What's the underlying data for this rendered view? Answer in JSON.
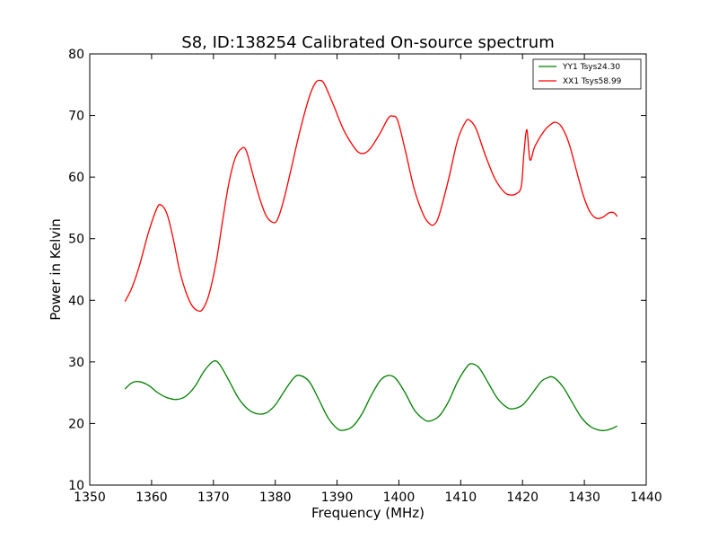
{
  "chart_data": {
    "type": "line",
    "title": "S8, ID:138254 Calibrated On-source spectrum",
    "xlabel": "Frequency (MHz)",
    "ylabel": "Power in Kelvin",
    "xlim": [
      1350,
      1440
    ],
    "ylim": [
      10,
      80
    ],
    "xticks": [
      1350,
      1360,
      1370,
      1380,
      1390,
      1400,
      1410,
      1420,
      1430,
      1440
    ],
    "yticks": [
      10,
      20,
      30,
      40,
      50,
      60,
      70,
      80
    ],
    "grid": false,
    "legend_position": "top-right",
    "series": [
      {
        "name": "YY1 Tsys24.30",
        "color": "#008000",
        "points": [
          [
            1355.7,
            25.6
          ],
          [
            1356.8,
            26.6
          ],
          [
            1358.0,
            26.8
          ],
          [
            1359.5,
            26.2
          ],
          [
            1361.0,
            25.0
          ],
          [
            1362.5,
            24.2
          ],
          [
            1364.0,
            23.9
          ],
          [
            1365.5,
            24.4
          ],
          [
            1367.0,
            26.0
          ],
          [
            1368.5,
            28.5
          ],
          [
            1370.0,
            30.1
          ],
          [
            1371.0,
            29.6
          ],
          [
            1372.5,
            27.0
          ],
          [
            1374.0,
            24.2
          ],
          [
            1375.5,
            22.4
          ],
          [
            1377.0,
            21.6
          ],
          [
            1378.5,
            21.7
          ],
          [
            1380.0,
            23.0
          ],
          [
            1381.5,
            25.3
          ],
          [
            1383.0,
            27.4
          ],
          [
            1384.0,
            27.8
          ],
          [
            1385.5,
            26.8
          ],
          [
            1387.0,
            24.0
          ],
          [
            1388.5,
            21.0
          ],
          [
            1390.0,
            19.2
          ],
          [
            1391.0,
            18.9
          ],
          [
            1392.5,
            19.5
          ],
          [
            1394.0,
            21.5
          ],
          [
            1395.5,
            24.5
          ],
          [
            1397.0,
            27.0
          ],
          [
            1398.3,
            27.8
          ],
          [
            1399.5,
            27.3
          ],
          [
            1401.0,
            25.0
          ],
          [
            1402.5,
            22.2
          ],
          [
            1404.0,
            20.7
          ],
          [
            1405.0,
            20.4
          ],
          [
            1406.5,
            21.2
          ],
          [
            1408.0,
            23.5
          ],
          [
            1409.5,
            26.8
          ],
          [
            1411.0,
            29.2
          ],
          [
            1411.8,
            29.7
          ],
          [
            1413.0,
            29.0
          ],
          [
            1414.5,
            26.5
          ],
          [
            1416.0,
            24.0
          ],
          [
            1417.5,
            22.6
          ],
          [
            1418.5,
            22.4
          ],
          [
            1420.0,
            23.0
          ],
          [
            1421.5,
            24.8
          ],
          [
            1423.0,
            26.8
          ],
          [
            1424.0,
            27.4
          ],
          [
            1425.0,
            27.5
          ],
          [
            1426.5,
            26.0
          ],
          [
            1428.0,
            23.5
          ],
          [
            1429.5,
            21.0
          ],
          [
            1431.0,
            19.5
          ],
          [
            1432.5,
            18.9
          ],
          [
            1433.5,
            18.9
          ],
          [
            1434.5,
            19.2
          ],
          [
            1435.3,
            19.6
          ]
        ]
      },
      {
        "name": "XX1 Tsys58.99",
        "color": "#ff0000",
        "points": [
          [
            1355.7,
            39.8
          ],
          [
            1356.8,
            42.0
          ],
          [
            1358.0,
            45.5
          ],
          [
            1359.5,
            51.0
          ],
          [
            1360.8,
            54.8
          ],
          [
            1361.5,
            55.5
          ],
          [
            1362.5,
            54.0
          ],
          [
            1363.5,
            50.0
          ],
          [
            1364.5,
            45.0
          ],
          [
            1365.5,
            41.5
          ],
          [
            1366.5,
            39.2
          ],
          [
            1367.5,
            38.3
          ],
          [
            1368.3,
            38.6
          ],
          [
            1369.3,
            41.0
          ],
          [
            1370.5,
            46.5
          ],
          [
            1371.5,
            53.0
          ],
          [
            1372.5,
            59.0
          ],
          [
            1373.5,
            63.0
          ],
          [
            1374.5,
            64.6
          ],
          [
            1375.3,
            64.3
          ],
          [
            1376.5,
            60.0
          ],
          [
            1377.5,
            56.5
          ],
          [
            1378.5,
            53.8
          ],
          [
            1379.5,
            52.7
          ],
          [
            1380.3,
            53.0
          ],
          [
            1381.3,
            56.0
          ],
          [
            1382.5,
            61.0
          ],
          [
            1384.0,
            67.5
          ],
          [
            1385.5,
            73.0
          ],
          [
            1386.5,
            75.3
          ],
          [
            1387.3,
            75.7
          ],
          [
            1388.0,
            75.0
          ],
          [
            1389.5,
            71.5
          ],
          [
            1391.0,
            67.8
          ],
          [
            1392.5,
            65.2
          ],
          [
            1393.5,
            64.0
          ],
          [
            1394.5,
            63.9
          ],
          [
            1395.5,
            64.8
          ],
          [
            1397.0,
            67.2
          ],
          [
            1398.3,
            69.6
          ],
          [
            1399.0,
            69.9
          ],
          [
            1399.8,
            69.2
          ],
          [
            1401.0,
            64.5
          ],
          [
            1402.5,
            58.0
          ],
          [
            1404.0,
            53.8
          ],
          [
            1405.0,
            52.4
          ],
          [
            1405.7,
            52.3
          ],
          [
            1406.5,
            53.8
          ],
          [
            1408.0,
            59.5
          ],
          [
            1409.5,
            66.0
          ],
          [
            1410.8,
            69.0
          ],
          [
            1411.5,
            69.2
          ],
          [
            1412.5,
            67.8
          ],
          [
            1414.0,
            63.5
          ],
          [
            1415.5,
            59.8
          ],
          [
            1417.0,
            57.6
          ],
          [
            1418.0,
            57.1
          ],
          [
            1419.0,
            57.3
          ],
          [
            1419.8,
            58.5
          ],
          [
            1420.2,
            63.5
          ],
          [
            1420.7,
            67.7
          ],
          [
            1421.2,
            62.8
          ],
          [
            1422.0,
            65.0
          ],
          [
            1423.5,
            67.5
          ],
          [
            1424.5,
            68.5
          ],
          [
            1425.3,
            68.9
          ],
          [
            1426.3,
            68.2
          ],
          [
            1427.5,
            65.5
          ],
          [
            1429.0,
            60.0
          ],
          [
            1430.0,
            56.5
          ],
          [
            1431.0,
            54.2
          ],
          [
            1432.0,
            53.3
          ],
          [
            1433.0,
            53.5
          ],
          [
            1434.0,
            54.2
          ],
          [
            1434.8,
            54.2
          ],
          [
            1435.3,
            53.6
          ]
        ]
      }
    ]
  }
}
